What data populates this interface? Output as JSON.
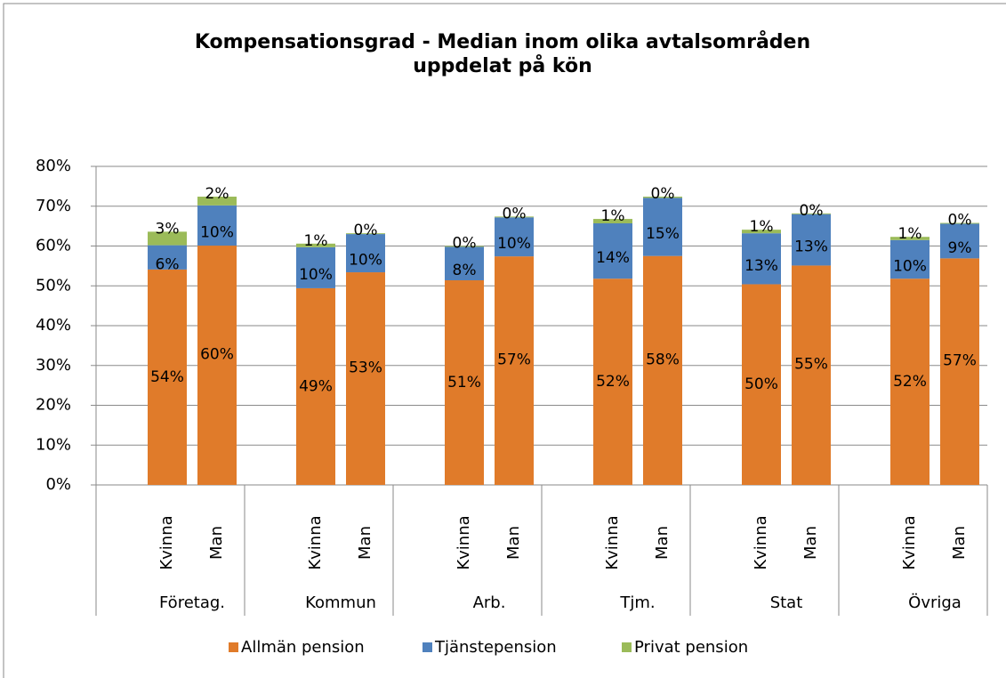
{
  "chart_data": {
    "type": "stacked_bar",
    "title": "Kompensationsgrad - Median inom olika avtalsområden uppdelat på kön",
    "groups": [
      "Företag.",
      "Kommun",
      "Arb.",
      "Tjm.",
      "Stat",
      "Övriga"
    ],
    "categories": [
      "Kvinna",
      "Man",
      "Kvinna",
      "Man",
      "Kvinna",
      "Man",
      "Kvinna",
      "Man",
      "Kvinna",
      "Man",
      "Kvinna",
      "Man"
    ],
    "series": [
      {
        "name": "Allmän pension",
        "color": "#e07b2a",
        "values": [
          54.1,
          60.1,
          49.4,
          53.4,
          51.4,
          57.4,
          51.8,
          57.5,
          50.4,
          55.1,
          51.8,
          56.9
        ],
        "value_labels": [
          "54%",
          "60%",
          "49%",
          "53%",
          "51%",
          "57%",
          "52%",
          "58%",
          "50%",
          "55%",
          "52%",
          "57%"
        ]
      },
      {
        "name": "Tjänstepension",
        "color": "#4f81bd",
        "values": [
          6.1,
          10.1,
          10.3,
          9.6,
          8.4,
          9.8,
          13.9,
          14.6,
          12.8,
          12.9,
          9.7,
          8.7
        ],
        "value_labels": [
          "6%",
          "10%",
          "10%",
          "10%",
          "8%",
          "10%",
          "14%",
          "15%",
          "13%",
          "13%",
          "10%",
          "9%"
        ]
      },
      {
        "name": "Privat pension",
        "color": "#9bbb59",
        "values": [
          3.4,
          2.2,
          0.9,
          0.2,
          0.2,
          0.2,
          1.1,
          0.3,
          0.9,
          0.2,
          0.8,
          0.2
        ],
        "value_labels": [
          "3%",
          "2%",
          "1%",
          "0%",
          "0%",
          "0%",
          "1%",
          "0%",
          "1%",
          "0%",
          "1%",
          "0%"
        ]
      }
    ],
    "ylim": [
      0,
      80
    ],
    "yticks": [
      {
        "value": 0,
        "label": "0%"
      },
      {
        "value": 10,
        "label": "10%"
      },
      {
        "value": 20,
        "label": "20%"
      },
      {
        "value": 30,
        "label": "30%"
      },
      {
        "value": 40,
        "label": "40%"
      },
      {
        "value": 50,
        "label": "50%"
      },
      {
        "value": 60,
        "label": "60%"
      },
      {
        "value": 70,
        "label": "70%"
      },
      {
        "value": 80,
        "label": "80%"
      }
    ],
    "grid": true,
    "legend": "bottom"
  }
}
